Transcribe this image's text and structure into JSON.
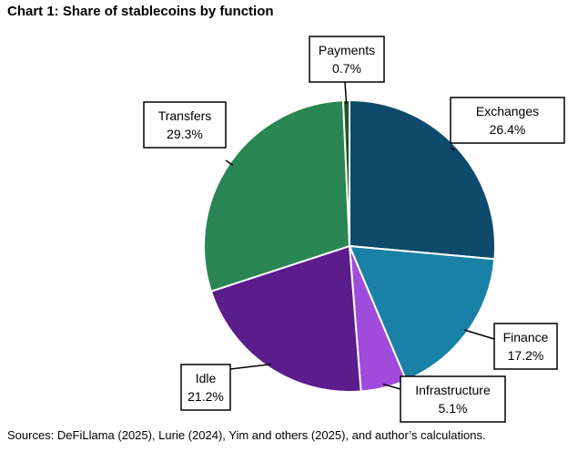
{
  "title": "Chart 1: Share of stablecoins by function",
  "source": "Sources: DeFiLlama (2025), Lurie (2024), Yim and others (2025), and author’s calculations.",
  "chart_data": {
    "type": "pie",
    "title": "Chart 1: Share of stablecoins by function",
    "unit": "%",
    "slices": [
      {
        "name": "Exchanges",
        "value": 26.4,
        "label": "26.4%",
        "color": "#0d4a6b"
      },
      {
        "name": "Finance",
        "value": 17.2,
        "label": "17.2%",
        "color": "#1a81a6"
      },
      {
        "name": "Infrastructure",
        "value": 5.1,
        "label": "5.1%",
        "color": "#a04bdb"
      },
      {
        "name": "Idle",
        "value": 21.2,
        "label": "21.2%",
        "color": "#5b1c8c"
      },
      {
        "name": "Transfers",
        "value": 29.3,
        "label": "29.3%",
        "color": "#2a8654"
      },
      {
        "name": "Payments",
        "value": 0.7,
        "label": "0.7%",
        "color": "#1f5630"
      }
    ]
  }
}
